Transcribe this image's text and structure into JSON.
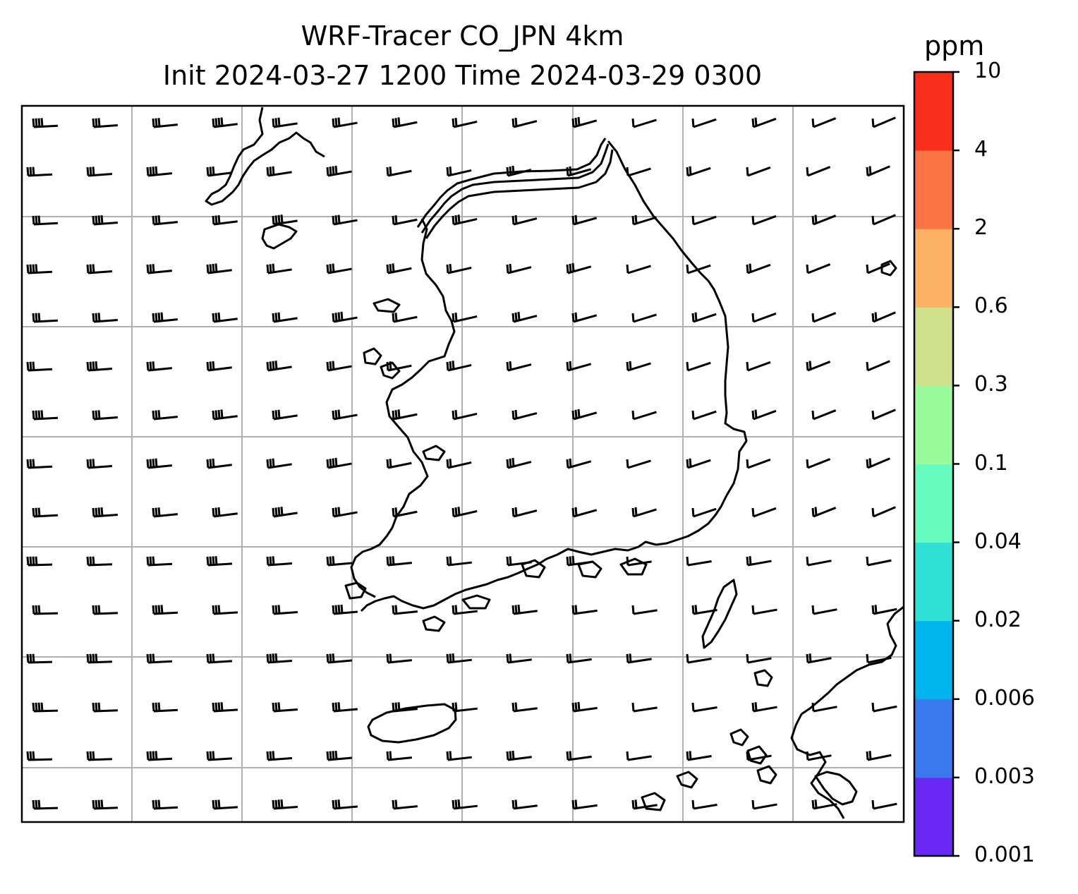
{
  "title": {
    "line1": "WRF-Tracer CO_JPN 4km",
    "line2": "Init 2024-03-27 1200 Time 2024-03-29 0300"
  },
  "colorbar": {
    "unit": "ppm",
    "ticks": [
      "0.001",
      "0.003",
      "0.006",
      "0.02",
      "0.04",
      "0.1",
      "0.3",
      "0.6",
      "2",
      "4",
      "10"
    ],
    "colors": [
      "#6a28f5",
      "#3a78f0",
      "#00b4ee",
      "#2fe0d6",
      "#66fbbf",
      "#9afb9c",
      "#cfe18a",
      "#fdb165",
      "#fb7544",
      "#fb2e1c"
    ]
  },
  "map": {
    "gridlines": true,
    "coastline_color": "#000000",
    "barb_color": "#000000",
    "wind_field": "westerly"
  }
}
